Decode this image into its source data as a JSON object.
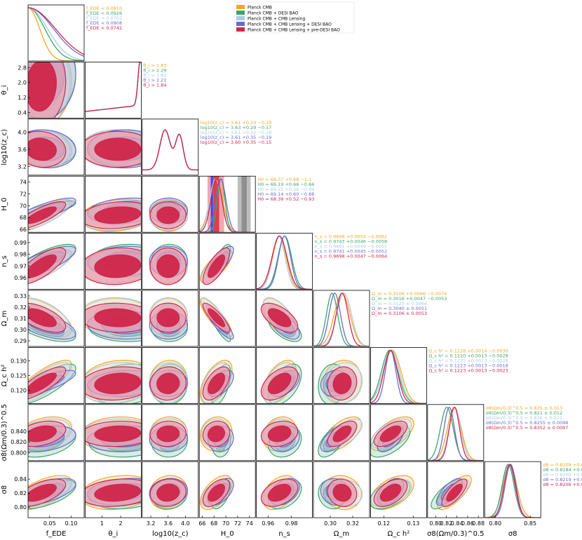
{
  "chart_data": {
    "type": "triangle",
    "title": "",
    "parameters": [
      {
        "name": "f_EDE",
        "label": "f_EDE",
        "range": [
          0.0,
          0.13
        ],
        "ticks": [
          0.05,
          0.1
        ],
        "tick_labels": [
          "0.05",
          "0.10"
        ]
      },
      {
        "name": "theta_i",
        "label": "θ_i",
        "range": [
          0.1,
          3.1
        ],
        "ticks": [
          0.4,
          1.2,
          2.0,
          2.8
        ],
        "tick_labels": [
          "0.4",
          "1.2",
          "2.0",
          "2.8"
        ],
        "x_ticks": [
          1,
          2
        ],
        "x_tick_labels": [
          "1",
          "2"
        ]
      },
      {
        "name": "log10_zc",
        "label": "log10(z_c)",
        "range": [
          3.0,
          4.3
        ],
        "ticks": [
          3.2,
          3.6,
          4.0
        ],
        "tick_labels": [
          "3.2",
          "3.6",
          "4.0"
        ]
      },
      {
        "name": "H0",
        "label": "H_0",
        "range": [
          65.5,
          75.0
        ],
        "ticks": [
          66,
          68,
          70,
          72,
          74
        ],
        "tick_labels": [
          "66",
          "68",
          "70",
          "72",
          "74"
        ]
      },
      {
        "name": "n_s",
        "label": "n_s",
        "range": [
          0.95,
          0.998
        ],
        "ticks": [
          0.96,
          0.97,
          0.98,
          0.99
        ],
        "tick_labels": [
          "0.96",
          "0.97",
          "0.98",
          "0.99"
        ],
        "x_ticks": [
          0.96,
          0.98
        ],
        "x_tick_labels": [
          "0.96",
          "0.98"
        ]
      },
      {
        "name": "Omega_m",
        "label": "Ω_m",
        "range": [
          0.285,
          0.335
        ],
        "ticks": [
          0.29,
          0.3,
          0.31,
          0.32,
          0.33
        ],
        "tick_labels": [
          "0.29",
          "0.30",
          "0.31",
          "0.32",
          "0.33"
        ],
        "x_ticks": [
          0.3,
          0.32
        ],
        "x_tick_labels": [
          "0.30",
          "0.32"
        ]
      },
      {
        "name": "Omega_c_h2",
        "label": "Ω_c h²",
        "range": [
          0.1155,
          0.1345
        ],
        "ticks": [
          0.12,
          0.125,
          0.13
        ],
        "tick_labels": [
          "0.120",
          "0.125",
          "0.130"
        ],
        "x_ticks": [
          0.12,
          0.13
        ],
        "x_tick_labels": [
          "0.12",
          "0.13"
        ]
      },
      {
        "name": "S8",
        "label": "σ8(Ωm/0.3)^0.5",
        "range": [
          0.785,
          0.89
        ],
        "ticks": [
          0.8,
          0.82,
          0.84
        ],
        "tick_labels": [
          "0.800",
          "0.820",
          "0.840"
        ],
        "x_ticks": [
          0.8,
          0.82,
          0.84,
          0.86,
          0.88
        ],
        "x_tick_labels": [
          "0.80",
          "0.82",
          "0.84",
          "0.86",
          "0.88"
        ]
      },
      {
        "name": "sigma8",
        "label": "σ8",
        "range": [
          0.785,
          0.865
        ],
        "ticks": [
          0.8,
          0.82,
          0.84
        ],
        "tick_labels": [
          "0.80",
          "0.82",
          "0.84"
        ],
        "x_ticks": [
          0.8,
          0.85
        ],
        "x_tick_labels": [
          "0.80",
          "0.85"
        ]
      }
    ],
    "series": [
      {
        "name": "Planck CMB",
        "color": "#f5a623",
        "means": [
          0.035,
          1.83,
          3.61,
          68.37,
          0.9698,
          0.3106,
          0.1228,
          0.835,
          0.8209
        ],
        "sigmas": [
          0.03,
          0.9,
          0.18,
          1.1,
          0.0058,
          0.007,
          0.003,
          0.013,
          0.0099
        ]
      },
      {
        "name": "Planck CMB + DESI BAO",
        "color": "#3aa66a",
        "means": [
          0.04,
          2.29,
          3.63,
          69.19,
          0.9743,
          0.3016,
          0.122,
          0.821,
          0.8184
        ],
        "sigmas": [
          0.032,
          0.9,
          0.17,
          0.66,
          0.0058,
          0.005,
          0.0028,
          0.012,
          0.0085
        ]
      },
      {
        "name": "Planck CMB + CMB Lensing",
        "color": "#a8cbe8",
        "means": [
          0.035,
          1.81,
          3.61,
          68.25,
          0.9691,
          0.3123,
          0.1225,
          0.836,
          0.82
        ],
        "sigmas": [
          0.028,
          0.9,
          0.18,
          0.99,
          0.0055,
          0.0066,
          0.0028,
          0.011,
          0.008
        ]
      },
      {
        "name": "Planck CMB + CMB Lensing + DESI BAO",
        "color": "#6a6ad2",
        "means": [
          0.04,
          2.21,
          3.61,
          69.14,
          0.9741,
          0.304,
          0.1223,
          0.8255,
          0.8219
        ],
        "sigmas": [
          0.032,
          0.9,
          0.18,
          0.88,
          0.0052,
          0.0051,
          0.0018,
          0.0098,
          0.0078
        ]
      },
      {
        "name": "Planck CMB + CMB Lensing + pre-DESI BAO",
        "color": "#d0264a",
        "means": [
          0.03,
          1.84,
          3.6,
          68.39,
          0.9698,
          0.3106,
          0.1223,
          0.8352,
          0.8206
        ],
        "sigmas": [
          0.026,
          0.9,
          0.17,
          0.93,
          0.0064,
          0.0053,
          0.0023,
          0.0097,
          0.008
        ]
      }
    ],
    "correlations": [
      [
        0,
        1,
        0.1
      ],
      [
        0,
        2,
        -0.1
      ],
      [
        0,
        3,
        0.8
      ],
      [
        0,
        4,
        0.75
      ],
      [
        0,
        5,
        -0.6
      ],
      [
        0,
        6,
        0.8
      ],
      [
        0,
        7,
        0.35
      ],
      [
        0,
        8,
        0.6
      ],
      [
        1,
        2,
        0.0
      ],
      [
        1,
        3,
        0.2
      ],
      [
        1,
        4,
        0.1
      ],
      [
        1,
        5,
        -0.05
      ],
      [
        1,
        6,
        0.15
      ],
      [
        1,
        7,
        0.1
      ],
      [
        1,
        8,
        0.2
      ],
      [
        2,
        3,
        0.0
      ],
      [
        2,
        4,
        0.0
      ],
      [
        2,
        5,
        0.0
      ],
      [
        2,
        6,
        0.05
      ],
      [
        2,
        7,
        0.05
      ],
      [
        2,
        8,
        0.1
      ],
      [
        3,
        4,
        0.75
      ],
      [
        3,
        5,
        -0.85
      ],
      [
        3,
        6,
        0.55
      ],
      [
        3,
        7,
        0.1
      ],
      [
        3,
        8,
        0.55
      ],
      [
        4,
        5,
        -0.6
      ],
      [
        4,
        6,
        0.5
      ],
      [
        4,
        7,
        0.2
      ],
      [
        4,
        8,
        0.4
      ],
      [
        5,
        6,
        0.1
      ],
      [
        5,
        7,
        0.6
      ],
      [
        5,
        8,
        -0.1
      ],
      [
        6,
        7,
        0.6
      ],
      [
        6,
        8,
        0.5
      ],
      [
        7,
        8,
        0.75
      ]
    ],
    "H0_shaded_bands": [
      {
        "range": [
          72.0,
          74.2
        ],
        "colors": [
          "#bdbdbd",
          "#8f8f8f"
        ]
      },
      {
        "range": [
          66.9,
          69.7
        ],
        "colors": [
          "#f6a5ae",
          "#e23b4b"
        ]
      },
      {
        "range": [
          67.4,
          67.9
        ],
        "colors": [
          "#7777ee",
          "#3333cc"
        ]
      }
    ],
    "stats": [
      {
        "param": "f_EDE",
        "lines": [
          "f_EDE < 0.0810",
          "f_EDE < 0.0926",
          "f_EDE < 0.0702",
          "f_EDE < 0.0908",
          "f_EDE < 0.0742"
        ]
      },
      {
        "param": "theta_i",
        "lines": [
          "θ_i > 1.83",
          "θ_i > 2.29",
          "θ_i > 1.81",
          "θ_i > 2.21",
          "θ_i > 1.84"
        ]
      },
      {
        "param": "log10_zc",
        "lines": [
          "log10(z_c) = 3.61 +0.33 −0.19",
          "log10(z_c) = 3.63 +0.29 −0.17",
          "log10(z_c) = 3.61 +0.32 −0.19",
          "log10(z_c) = 3.61 +0.35 −0.19",
          "log10(z_c) = 3.60 +0.35 −0.15"
        ]
      },
      {
        "param": "H0",
        "lines": [
          "H0 = 68.37 +0.68 −1.1",
          "H0 = 69.19 +0.66 −0.66",
          "H0 = 68.25 +0.56 −0.99",
          "H0 = 69.14 +0.60 −0.88",
          "H0 = 68.39 +0.52 −0.93"
        ]
      },
      {
        "param": "n_s",
        "lines": [
          "n_s = 0.9698 +0.0054 −0.0062",
          "n_s = 0.9743 +0.0046 −0.0058",
          "n_s = 0.9691 +0.0049 −0.0055",
          "n_s = 0.9741 +0.0045 −0.0052",
          "n_s = 0.9698 +0.0047 −0.0064"
        ]
      },
      {
        "param": "Omega_m",
        "lines": [
          "Ω_m = 0.3106 +0.0066 −0.0074",
          "Ω_m = 0.3016 +0.0047 −0.0053",
          "Ω_m = 0.3123 ± 0.0066",
          "Ω_m = 0.3040 ± 0.0051",
          "Ω_m = 0.3106 ± 0.0053"
        ]
      },
      {
        "param": "Omega_c_h2",
        "lines": [
          "Ω_c h² = 0.1228 +0.0014 −0.0030",
          "Ω_c h² = 0.1220 +0.0013 −0.0028",
          "Ω_c h² = 0.1225 +0.0013 −0.0028",
          "Ω_c h² = 0.1223 +0.0013 −0.0018",
          "Ω_c h² = 0.1223 +0.0013 −0.0023"
        ]
      },
      {
        "param": "S8",
        "lines": [
          "σ8(Ωm/0.3)^0.5 = 0.835 ± 0.013",
          "σ8(Ωm/0.3)^0.5 = 0.821 ± 0.012",
          "σ8(Ωm/0.3)^0.5 = 0.836 ± 0.011",
          "σ8(Ωm/0.3)^0.5 = 0.8255 ± 0.0098",
          "σ8(Ωm/0.3)^0.5 = 0.8352 ± 0.0097"
        ]
      },
      {
        "param": "sigma8",
        "lines": [
          "σ8 = 0.8209 +0.0079 −0.0099",
          "σ8 = 0.8184 +0.0066 −0.0085",
          "σ8 = 0.8200 +0.0062 −0.0080",
          "σ8 = 0.8219 +0.0071 −0.0078",
          "σ8 = 0.8206 +0.0072 −0.0080"
        ]
      }
    ]
  }
}
